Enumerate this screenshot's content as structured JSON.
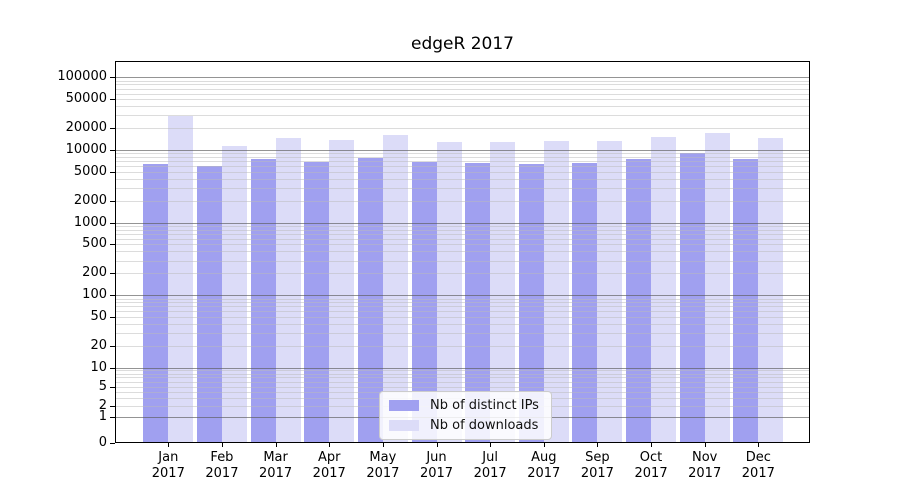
{
  "chart_data": {
    "type": "bar",
    "title": "edgeR 2017",
    "categories": [
      "Jan 2017",
      "Feb 2017",
      "Mar 2017",
      "Apr 2017",
      "May 2017",
      "Jun 2017",
      "Jul 2017",
      "Aug 2017",
      "Sep 2017",
      "Oct 2017",
      "Nov 2017",
      "Dec 2017"
    ],
    "series": [
      {
        "name": "Nb of distinct IPs",
        "color": "#a0a0f0",
        "values": [
          6500,
          6000,
          7400,
          6900,
          7800,
          6900,
          6700,
          6500,
          6700,
          7500,
          9200,
          7500
        ]
      },
      {
        "name": "Nb of downloads",
        "color": "#dcdcf8",
        "values": [
          29000,
          11500,
          14500,
          13800,
          16200,
          13000,
          13000,
          13200,
          13300,
          15000,
          17300,
          14500
        ]
      }
    ],
    "xlabel": "",
    "ylabel": "",
    "y_axis": {
      "scale": "log-with-zero",
      "tick_labels": [
        "0",
        "1",
        "2",
        "5",
        "10",
        "20",
        "50",
        "100",
        "200",
        "500",
        "1000",
        "2000",
        "5000",
        "10000",
        "20000",
        "50000",
        "100000"
      ],
      "ylim": [
        0,
        200000
      ]
    },
    "grid": "horizontal major and minor log gridlines, drawn over bars",
    "legend_position": "inside bottom center"
  }
}
